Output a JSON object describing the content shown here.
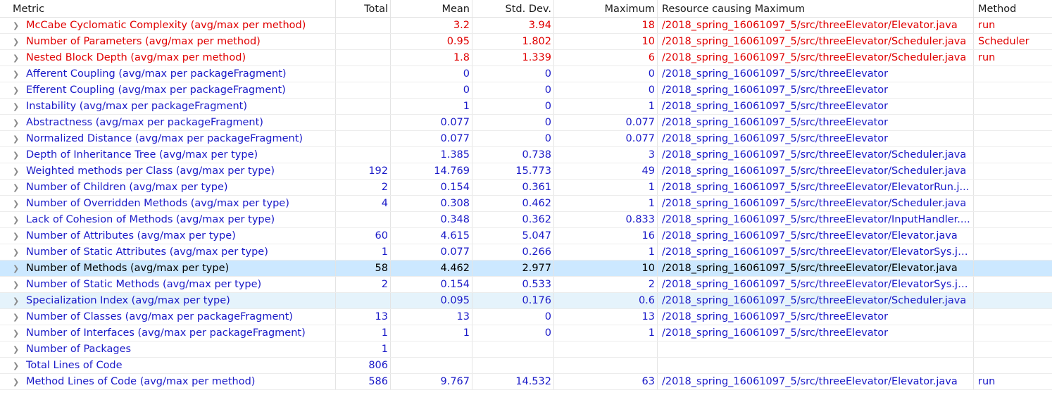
{
  "columns": {
    "metric": "Metric",
    "total": "Total",
    "mean": "Mean",
    "std": "Std. Dev.",
    "max": "Maximum",
    "resource": "Resource causing Maximum",
    "method": "Method"
  },
  "colors": {
    "violation": "#e00000",
    "normal": "#1a1ac8",
    "selected_bg": "#cce8ff",
    "hover_bg": "#e5f3fb"
  },
  "expander_icon": "chevron-right-icon",
  "rows": [
    {
      "metric": "McCabe Cyclomatic Complexity (avg/max per method)",
      "total": "",
      "mean": "3.2",
      "std": "3.94",
      "max": "18",
      "resource": "/2018_spring_16061097_5/src/threeElevator/Elevator.java",
      "method": "run",
      "state": "red"
    },
    {
      "metric": "Number of Parameters (avg/max per method)",
      "total": "",
      "mean": "0.95",
      "std": "1.802",
      "max": "10",
      "resource": "/2018_spring_16061097_5/src/threeElevator/Scheduler.java",
      "method": "Scheduler",
      "state": "red"
    },
    {
      "metric": "Nested Block Depth (avg/max per method)",
      "total": "",
      "mean": "1.8",
      "std": "1.339",
      "max": "6",
      "resource": "/2018_spring_16061097_5/src/threeElevator/Scheduler.java",
      "method": "run",
      "state": "red"
    },
    {
      "metric": "Afferent Coupling (avg/max per packageFragment)",
      "total": "",
      "mean": "0",
      "std": "0",
      "max": "0",
      "resource": "/2018_spring_16061097_5/src/threeElevator",
      "method": "",
      "state": "blue"
    },
    {
      "metric": "Efferent Coupling (avg/max per packageFragment)",
      "total": "",
      "mean": "0",
      "std": "0",
      "max": "0",
      "resource": "/2018_spring_16061097_5/src/threeElevator",
      "method": "",
      "state": "blue"
    },
    {
      "metric": "Instability (avg/max per packageFragment)",
      "total": "",
      "mean": "1",
      "std": "0",
      "max": "1",
      "resource": "/2018_spring_16061097_5/src/threeElevator",
      "method": "",
      "state": "blue"
    },
    {
      "metric": "Abstractness (avg/max per packageFragment)",
      "total": "",
      "mean": "0.077",
      "std": "0",
      "max": "0.077",
      "resource": "/2018_spring_16061097_5/src/threeElevator",
      "method": "",
      "state": "blue"
    },
    {
      "metric": "Normalized Distance (avg/max per packageFragment)",
      "total": "",
      "mean": "0.077",
      "std": "0",
      "max": "0.077",
      "resource": "/2018_spring_16061097_5/src/threeElevator",
      "method": "",
      "state": "blue"
    },
    {
      "metric": "Depth of Inheritance Tree (avg/max per type)",
      "total": "",
      "mean": "1.385",
      "std": "0.738",
      "max": "3",
      "resource": "/2018_spring_16061097_5/src/threeElevator/Scheduler.java",
      "method": "",
      "state": "blue"
    },
    {
      "metric": "Weighted methods per Class (avg/max per type)",
      "total": "192",
      "mean": "14.769",
      "std": "15.773",
      "max": "49",
      "resource": "/2018_spring_16061097_5/src/threeElevator/Scheduler.java",
      "method": "",
      "state": "blue"
    },
    {
      "metric": "Number of Children (avg/max per type)",
      "total": "2",
      "mean": "0.154",
      "std": "0.361",
      "max": "1",
      "resource": "/2018_spring_16061097_5/src/threeElevator/ElevatorRun.j...",
      "method": "",
      "state": "blue"
    },
    {
      "metric": "Number of Overridden Methods (avg/max per type)",
      "total": "4",
      "mean": "0.308",
      "std": "0.462",
      "max": "1",
      "resource": "/2018_spring_16061097_5/src/threeElevator/Scheduler.java",
      "method": "",
      "state": "blue"
    },
    {
      "metric": "Lack of Cohesion of Methods (avg/max per type)",
      "total": "",
      "mean": "0.348",
      "std": "0.362",
      "max": "0.833",
      "resource": "/2018_spring_16061097_5/src/threeElevator/InputHandler....",
      "method": "",
      "state": "blue"
    },
    {
      "metric": "Number of Attributes (avg/max per type)",
      "total": "60",
      "mean": "4.615",
      "std": "5.047",
      "max": "16",
      "resource": "/2018_spring_16061097_5/src/threeElevator/Elevator.java",
      "method": "",
      "state": "blue"
    },
    {
      "metric": "Number of Static Attributes (avg/max per type)",
      "total": "1",
      "mean": "0.077",
      "std": "0.266",
      "max": "1",
      "resource": "/2018_spring_16061097_5/src/threeElevator/ElevatorSys.ja...",
      "method": "",
      "state": "blue"
    },
    {
      "metric": "Number of Methods (avg/max per type)",
      "total": "58",
      "mean": "4.462",
      "std": "2.977",
      "max": "10",
      "resource": "/2018_spring_16061097_5/src/threeElevator/Elevator.java",
      "method": "",
      "state": "black",
      "row_state": "selected"
    },
    {
      "metric": "Number of Static Methods (avg/max per type)",
      "total": "2",
      "mean": "0.154",
      "std": "0.533",
      "max": "2",
      "resource": "/2018_spring_16061097_5/src/threeElevator/ElevatorSys.ja...",
      "method": "",
      "state": "blue"
    },
    {
      "metric": "Specialization Index (avg/max per type)",
      "total": "",
      "mean": "0.095",
      "std": "0.176",
      "max": "0.6",
      "resource": "/2018_spring_16061097_5/src/threeElevator/Scheduler.java",
      "method": "",
      "state": "blue",
      "row_state": "hovered"
    },
    {
      "metric": "Number of Classes (avg/max per packageFragment)",
      "total": "13",
      "mean": "13",
      "std": "0",
      "max": "13",
      "resource": "/2018_spring_16061097_5/src/threeElevator",
      "method": "",
      "state": "blue"
    },
    {
      "metric": "Number of Interfaces (avg/max per packageFragment)",
      "total": "1",
      "mean": "1",
      "std": "0",
      "max": "1",
      "resource": "/2018_spring_16061097_5/src/threeElevator",
      "method": "",
      "state": "blue"
    },
    {
      "metric": "Number of Packages",
      "total": "1",
      "mean": "",
      "std": "",
      "max": "",
      "resource": "",
      "method": "",
      "state": "blue"
    },
    {
      "metric": "Total Lines of Code",
      "total": "806",
      "mean": "",
      "std": "",
      "max": "",
      "resource": "",
      "method": "",
      "state": "blue"
    },
    {
      "metric": "Method Lines of Code (avg/max per method)",
      "total": "586",
      "mean": "9.767",
      "std": "14.532",
      "max": "63",
      "resource": "/2018_spring_16061097_5/src/threeElevator/Elevator.java",
      "method": "run",
      "state": "blue"
    }
  ]
}
